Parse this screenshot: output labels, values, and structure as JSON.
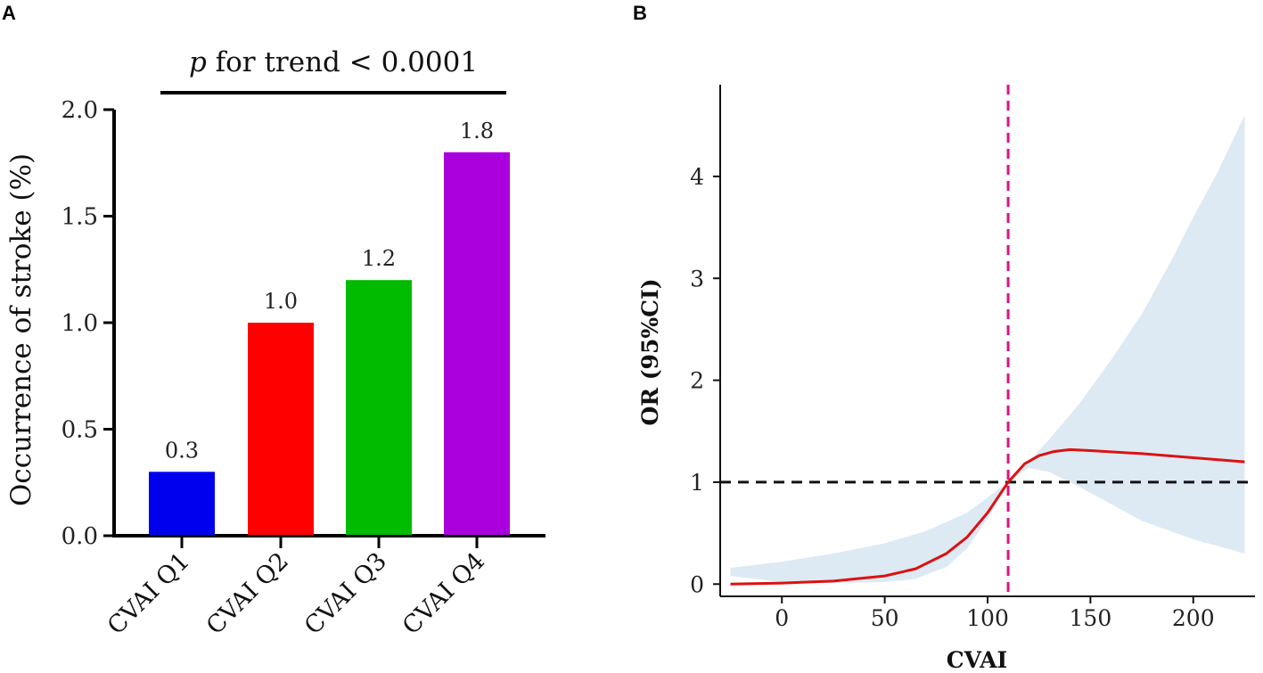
{
  "chart_data": [
    {
      "type": "bar",
      "panel_label": "A",
      "title": "p for trend < 0.0001",
      "title_italic": "p",
      "title_rest": " for trend < 0.0001",
      "categories": [
        "CVAI Q1",
        "CVAI Q2",
        "CVAI Q3",
        "CVAI Q4"
      ],
      "values": [
        0.3,
        1.0,
        1.2,
        1.8
      ],
      "value_labels": [
        "0.3",
        "1.0",
        "1.2",
        "1.8"
      ],
      "colors": [
        "#0000ee",
        "#ff0000",
        "#00bb00",
        "#aa00dd"
      ],
      "ylabel": "Occurrence of stroke (%)",
      "xlabel": "",
      "ylim": [
        0,
        2.0
      ],
      "yticks": [
        "0.0",
        "0.5",
        "1.0",
        "1.5",
        "2.0"
      ],
      "ytick_values": [
        0,
        0.5,
        1.0,
        1.5,
        2.0
      ]
    },
    {
      "type": "line",
      "panel_label": "B",
      "xlabel": "CVAI",
      "ylabel": "OR (95%CI)",
      "xlim": [
        -30,
        230
      ],
      "ylim": [
        -0.12,
        4.9
      ],
      "xticks": [
        "0",
        "50",
        "100",
        "150",
        "200"
      ],
      "xtick_values": [
        0,
        50,
        100,
        150,
        200
      ],
      "yticks": [
        "0",
        "1",
        "2",
        "3",
        "4"
      ],
      "ytick_values": [
        0,
        1,
        2,
        3,
        4
      ],
      "reference_hline": 1,
      "reference_vline": 110,
      "line_color": "#dd1111",
      "band_color": "#ddeaf3",
      "vline_color": "#dd1188",
      "series": [
        {
          "name": "OR",
          "x": [
            -25,
            0,
            25,
            50,
            65,
            80,
            90,
            100,
            110,
            118,
            125,
            132,
            140,
            150,
            175,
            200,
            225
          ],
          "y": [
            0.0,
            0.01,
            0.03,
            0.08,
            0.15,
            0.3,
            0.46,
            0.7,
            1.0,
            1.18,
            1.26,
            1.3,
            1.32,
            1.31,
            1.28,
            1.24,
            1.2
          ]
        },
        {
          "name": "CI lower",
          "x": [
            -25,
            0,
            25,
            50,
            65,
            80,
            90,
            100,
            110,
            120,
            130,
            145,
            175,
            200,
            225
          ],
          "y": [
            0.08,
            0.02,
            0.01,
            0.02,
            0.05,
            0.17,
            0.35,
            0.64,
            1.0,
            1.14,
            1.1,
            0.95,
            0.62,
            0.44,
            0.3
          ]
        },
        {
          "name": "CI upper",
          "x": [
            -25,
            0,
            25,
            50,
            70,
            90,
            100,
            110,
            120,
            130,
            145,
            160,
            175,
            190,
            200,
            212,
            225
          ],
          "y": [
            0.16,
            0.22,
            0.3,
            0.4,
            0.52,
            0.7,
            0.85,
            1.0,
            1.2,
            1.42,
            1.78,
            2.2,
            2.65,
            3.2,
            3.6,
            4.05,
            4.6
          ]
        }
      ]
    }
  ]
}
